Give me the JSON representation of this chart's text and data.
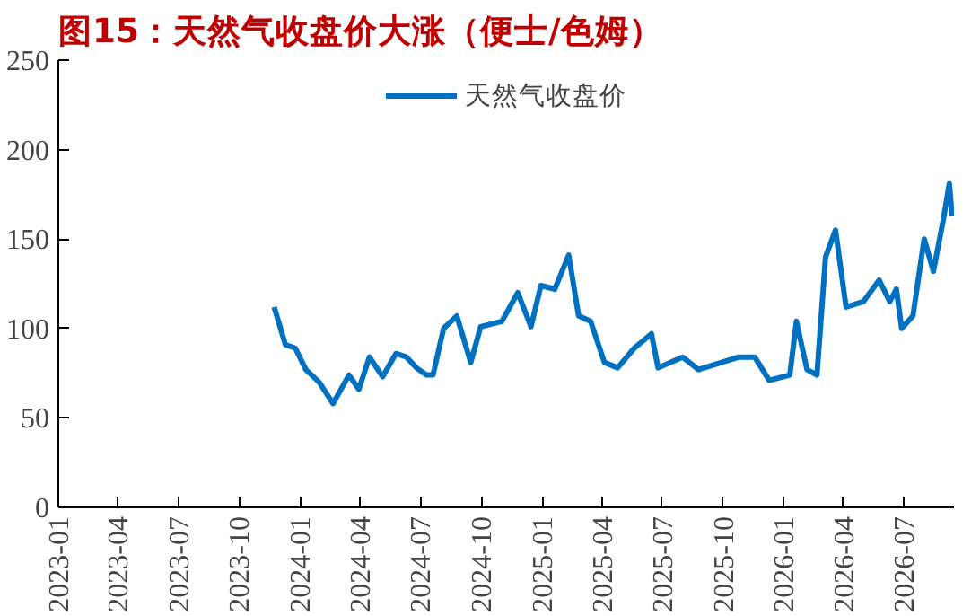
{
  "chart_data": {
    "type": "line",
    "title": "图15：天然气收盘价大涨（便士/色姆）",
    "x": [
      "2023-11-23",
      "2023-12-10",
      "2023-12-25",
      "2024-01-10",
      "2024-01-30",
      "2024-02-20",
      "2024-03-15",
      "2024-03-30",
      "2024-04-15",
      "2024-05-05",
      "2024-05-25",
      "2024-06-10",
      "2024-06-25",
      "2024-07-10",
      "2024-07-20",
      "2024-08-05",
      "2024-08-25",
      "2024-09-15",
      "2024-09-30",
      "2024-11-01",
      "2024-11-25",
      "2024-12-15",
      "2024-12-30",
      "2025-01-20",
      "2025-02-10",
      "2025-02-25",
      "2025-03-15",
      "2025-04-05",
      "2025-04-25",
      "2025-05-20",
      "2025-06-15",
      "2025-06-25",
      "2025-08-01",
      "2025-08-25",
      "2025-10-25",
      "2025-11-18",
      "2025-12-10",
      "2026-01-10",
      "2026-01-20",
      "2026-02-05",
      "2026-02-20",
      "2026-03-05",
      "2026-03-20",
      "2026-04-05",
      "2026-05-01",
      "2026-05-25",
      "2026-06-10",
      "2026-06-20",
      "2026-06-28",
      "2026-07-15",
      "2026-08-01",
      "2026-08-15",
      "2026-08-30",
      "2026-09-08",
      "2026-09-12"
    ],
    "series": [
      {
        "name": "天然气收盘价",
        "color": "#0070c0",
        "values": [
          112,
          91,
          89,
          77,
          70,
          58,
          74,
          66,
          84,
          73,
          86,
          84,
          78,
          74,
          74,
          100,
          107,
          81,
          101,
          104,
          120,
          101,
          124,
          122,
          141,
          107,
          104,
          81,
          78,
          89,
          97,
          78,
          84,
          77,
          84,
          84,
          71,
          74,
          104,
          77,
          74,
          140,
          155,
          112,
          115,
          127,
          115,
          122,
          100,
          107,
          150,
          132,
          161,
          181,
          163
        ]
      }
    ],
    "xlim": [
      "2023-01-01",
      "2026-09-15"
    ],
    "xticks": [
      {
        "value": "2023-01-01",
        "label": "2023-01"
      },
      {
        "value": "2023-04-01",
        "label": "2023-04"
      },
      {
        "value": "2023-07-01",
        "label": "2023-07"
      },
      {
        "value": "2023-10-01",
        "label": "2023-10"
      },
      {
        "value": "2024-01-01",
        "label": "2024-01"
      },
      {
        "value": "2024-04-01",
        "label": "2024-04"
      },
      {
        "value": "2024-07-01",
        "label": "2024-07"
      },
      {
        "value": "2024-10-01",
        "label": "2024-10"
      },
      {
        "value": "2025-01-01",
        "label": "2025-01"
      },
      {
        "value": "2025-04-01",
        "label": "2025-04"
      },
      {
        "value": "2025-07-01",
        "label": "2025-07"
      },
      {
        "value": "2025-10-01",
        "label": "2025-10"
      },
      {
        "value": "2026-01-01",
        "label": "2026-01"
      },
      {
        "value": "2026-04-01",
        "label": "2026-04"
      },
      {
        "value": "2026-07-01",
        "label": "2026-07"
      }
    ],
    "ylim": [
      0,
      250
    ],
    "yticks": [
      0,
      50,
      100,
      150,
      200,
      250
    ],
    "legend": "top",
    "grid": false,
    "marker": "none",
    "line_style": "solid"
  }
}
